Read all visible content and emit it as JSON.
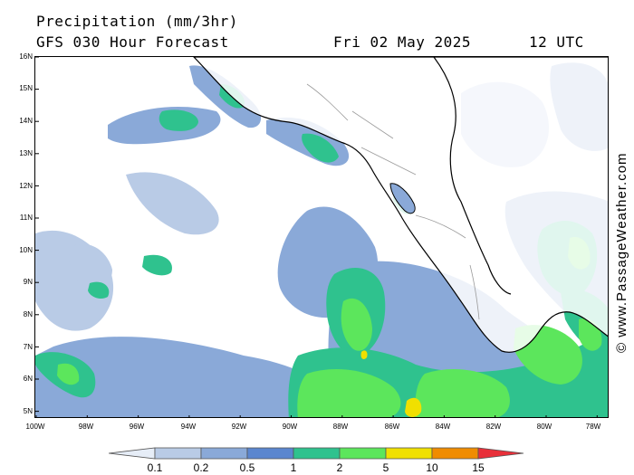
{
  "header": {
    "title": "Precipitation (mm/3hr)",
    "subtitle": "GFS 030 Hour Forecast",
    "date": "Fri 02 May 2025",
    "time": "12 UTC"
  },
  "copyright": "© www.PassageWeather.com",
  "axes": {
    "lat_labels": [
      "16N",
      "15N",
      "14N",
      "13N",
      "12N",
      "11N",
      "10N",
      "9N",
      "8N",
      "7N",
      "6N",
      "5N"
    ],
    "lon_labels": [
      "100W",
      "98W",
      "96W",
      "94W",
      "92W",
      "90W",
      "88W",
      "86W",
      "84W",
      "82W",
      "80W",
      "78W"
    ]
  },
  "legend": {
    "labels": [
      "0.1",
      "0.2",
      "0.5",
      "1",
      "2",
      "5",
      "10",
      "15"
    ],
    "colors": [
      "#e6edf7",
      "#b9cbe6",
      "#8aa9d8",
      "#5b86cf",
      "#2fc28e",
      "#5ce65c",
      "#f0e000",
      "#f08c00",
      "#e8303a"
    ]
  },
  "colors": {
    "land_border": "#000000",
    "country_border": "#9a9a9a"
  }
}
